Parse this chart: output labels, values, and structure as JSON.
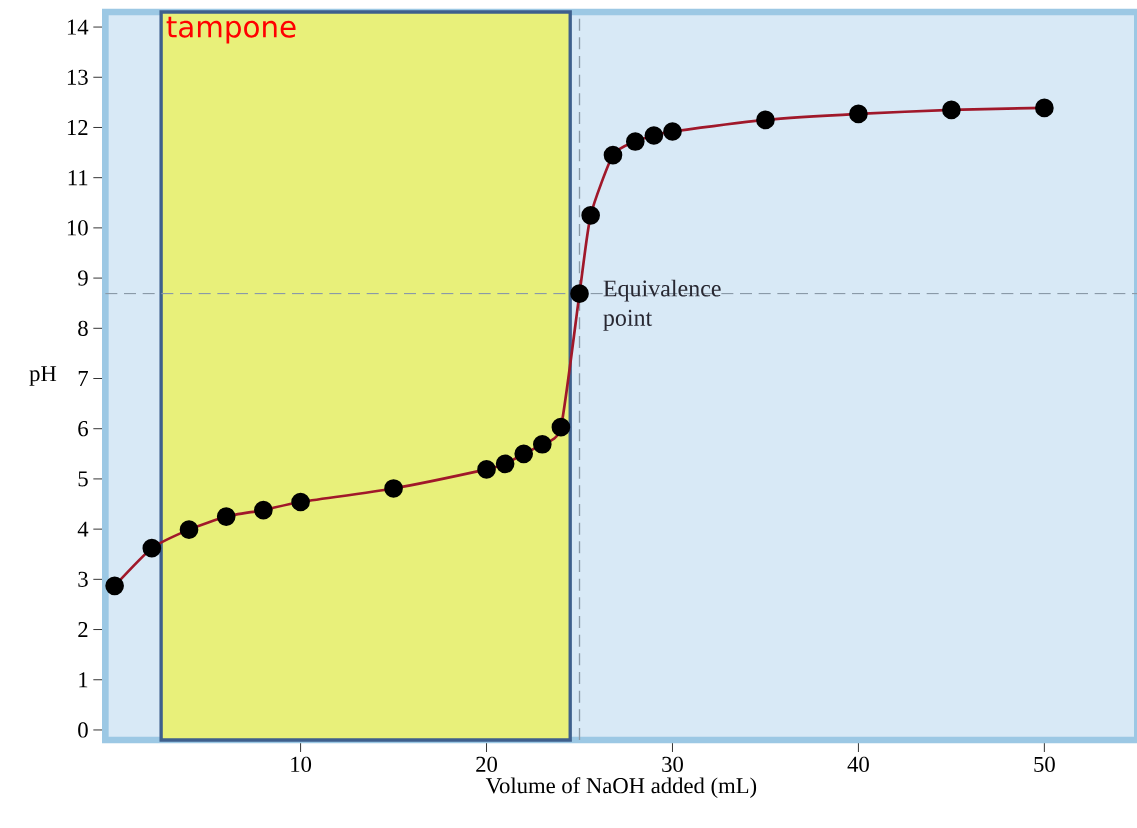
{
  "chart_data": {
    "type": "line",
    "xlabel": "Volume of NaOH added (mL)",
    "ylabel": "pH",
    "xlim": [
      -0.5,
      55
    ],
    "ylim": [
      -0.2,
      14.3
    ],
    "xticks": [
      10,
      20,
      30,
      40,
      50
    ],
    "yticks": [
      0,
      1,
      2,
      3,
      4,
      5,
      6,
      7,
      8,
      9,
      10,
      11,
      12,
      13,
      14
    ],
    "marker": "circle",
    "grid": false,
    "series": [
      {
        "color": "#a0182a",
        "x": [
          0,
          2,
          4,
          6,
          8,
          10,
          15,
          20,
          21,
          22,
          23,
          24,
          25,
          25.6,
          26.8,
          28,
          29,
          30,
          35,
          40,
          45,
          50
        ],
        "values": [
          2.87,
          3.62,
          3.99,
          4.25,
          4.38,
          4.54,
          4.81,
          5.19,
          5.3,
          5.5,
          5.69,
          6.03,
          8.69,
          10.25,
          11.45,
          11.72,
          11.84,
          11.92,
          12.15,
          12.27,
          12.35,
          12.39
        ]
      }
    ],
    "ref_lines": [
      {
        "axis": "y",
        "value": 8.69,
        "line_style": "dashed",
        "color": "#8a9aa8"
      },
      {
        "axis": "x",
        "value": 25,
        "line_style": "dashed",
        "color": "#8a9aa8"
      }
    ],
    "bands": [
      {
        "axis": "x",
        "from": 2.5,
        "to": 24.5,
        "label": "tampone",
        "color": "#e8f07a"
      }
    ],
    "annotations": [
      {
        "text": "Equivalence point",
        "x": 25,
        "y": 8.69
      }
    ]
  }
}
